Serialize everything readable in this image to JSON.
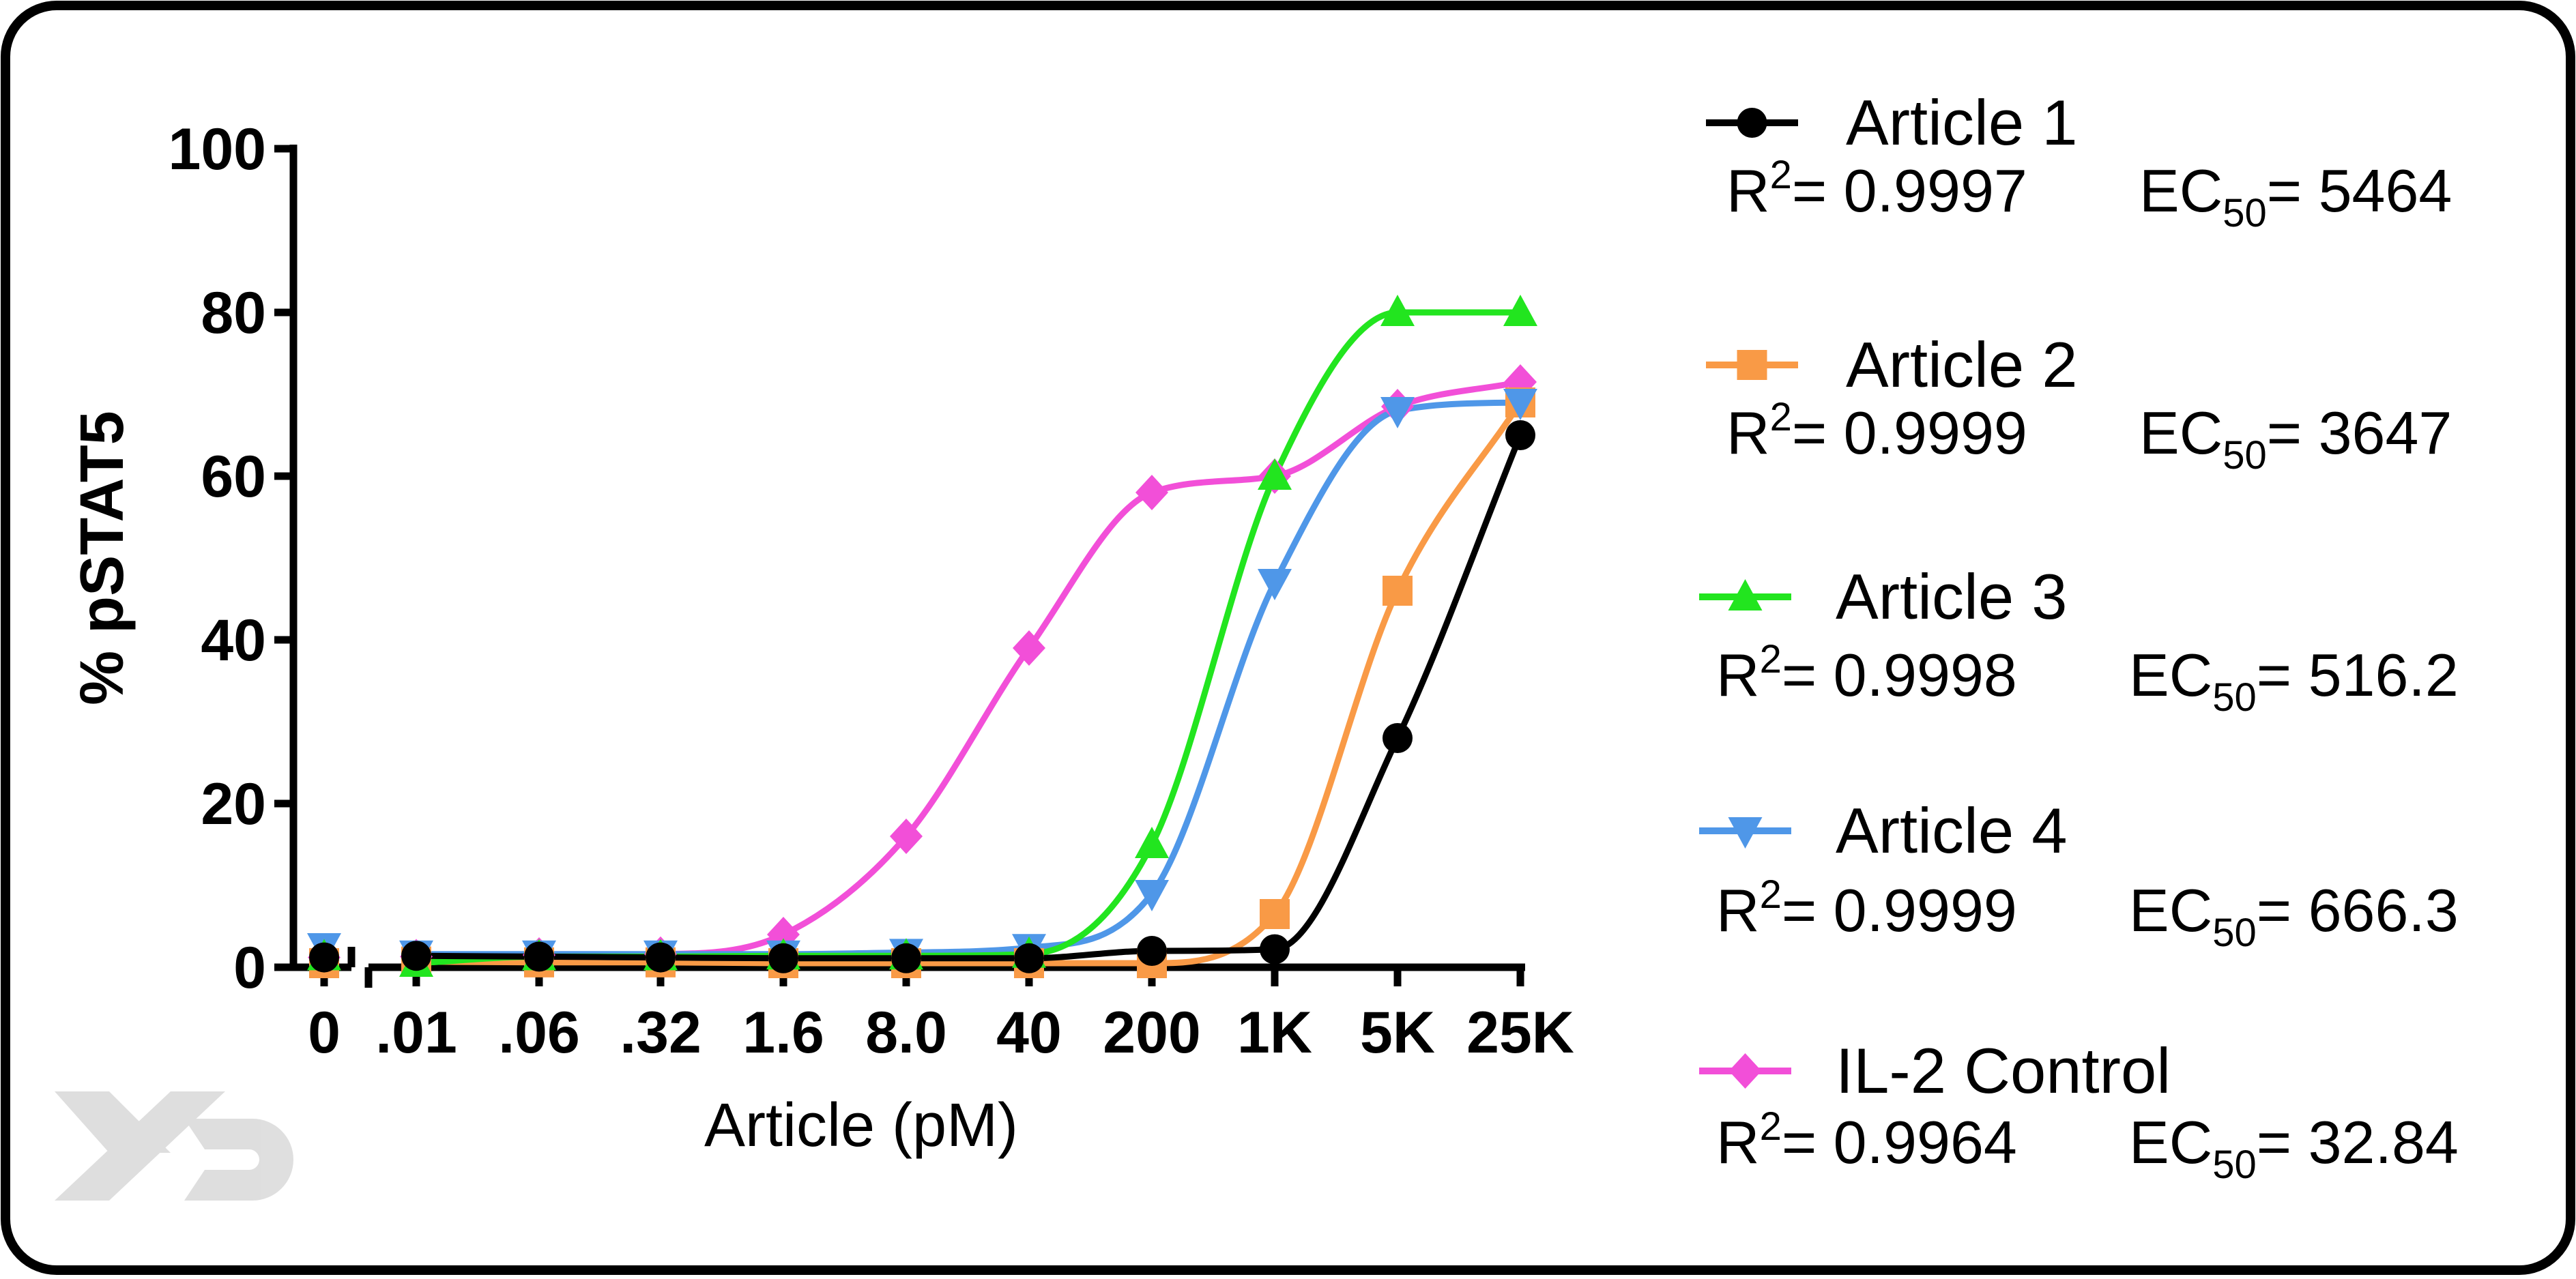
{
  "chart_data": {
    "type": "line",
    "xlabel": "Article (pM)",
    "ylabel": "% pSTAT5",
    "ylim": [
      0,
      100
    ],
    "y_ticks": [
      "0",
      "20",
      "40",
      "60",
      "80",
      "100"
    ],
    "x_tick_labels": [
      "0",
      ".01",
      ".06",
      ".32",
      "1.6",
      "8.0",
      "40",
      "200",
      "1K",
      "5K",
      "25K"
    ],
    "x_scale": "log",
    "x_axis_break_after_first": true,
    "grid": false,
    "legend_position": "right",
    "series": [
      {
        "name": "Article 1",
        "marker": "circle",
        "color": "#000000",
        "r2_label": "R",
        "r2_exp": "2",
        "r2_value": "= 0.9997",
        "ec50_label": "EC",
        "ec50_sub": "50",
        "ec50_value": "= 5464",
        "values": [
          1.2,
          1.4,
          1.3,
          1.2,
          1.1,
          1.1,
          1.1,
          2.0,
          2.2,
          28,
          65
        ]
      },
      {
        "name": "Article 2",
        "marker": "square",
        "color": "#f99a46",
        "r2_label": "R",
        "r2_exp": "2",
        "r2_value": "= 0.9999",
        "ec50_label": "EC",
        "ec50_sub": "50",
        "ec50_value": "= 3647",
        "values": [
          0.5,
          0.7,
          0.6,
          0.6,
          0.5,
          0.5,
          0.5,
          0.5,
          6.5,
          46,
          69
        ]
      },
      {
        "name": "Article 3",
        "marker": "triangle-up",
        "color": "#22e51f",
        "r2_label": "R",
        "r2_exp": "2",
        "r2_value": "= 0.9998",
        "ec50_label": "EC",
        "ec50_sub": "50",
        "ec50_value": "= 516.2",
        "values": [
          1.3,
          0.5,
          1.3,
          1.3,
          1.4,
          1.4,
          1.6,
          15,
          60,
          80,
          80
        ]
      },
      {
        "name": "Article 4",
        "marker": "triangle-down",
        "color": "#4f97e8",
        "r2_label": "R",
        "r2_exp": "2",
        "r2_value": "= 0.9999",
        "ec50_label": "EC",
        "ec50_sub": "50",
        "ec50_value": "= 666.3",
        "values": [
          2.5,
          1.6,
          1.6,
          1.6,
          1.6,
          1.8,
          2.4,
          9.0,
          47,
          68,
          69
        ]
      },
      {
        "name": "IL-2 Control",
        "marker": "diamond",
        "color": "#f24fd8",
        "r2_label": "R",
        "r2_exp": "2",
        "r2_value": "= 0.9964",
        "ec50_label": "EC",
        "ec50_sub": "50",
        "ec50_value": "= 32.84",
        "values": [
          1.2,
          1.3,
          1.5,
          1.6,
          4.0,
          16,
          39,
          58,
          60,
          68.5,
          71.5
        ]
      }
    ]
  }
}
